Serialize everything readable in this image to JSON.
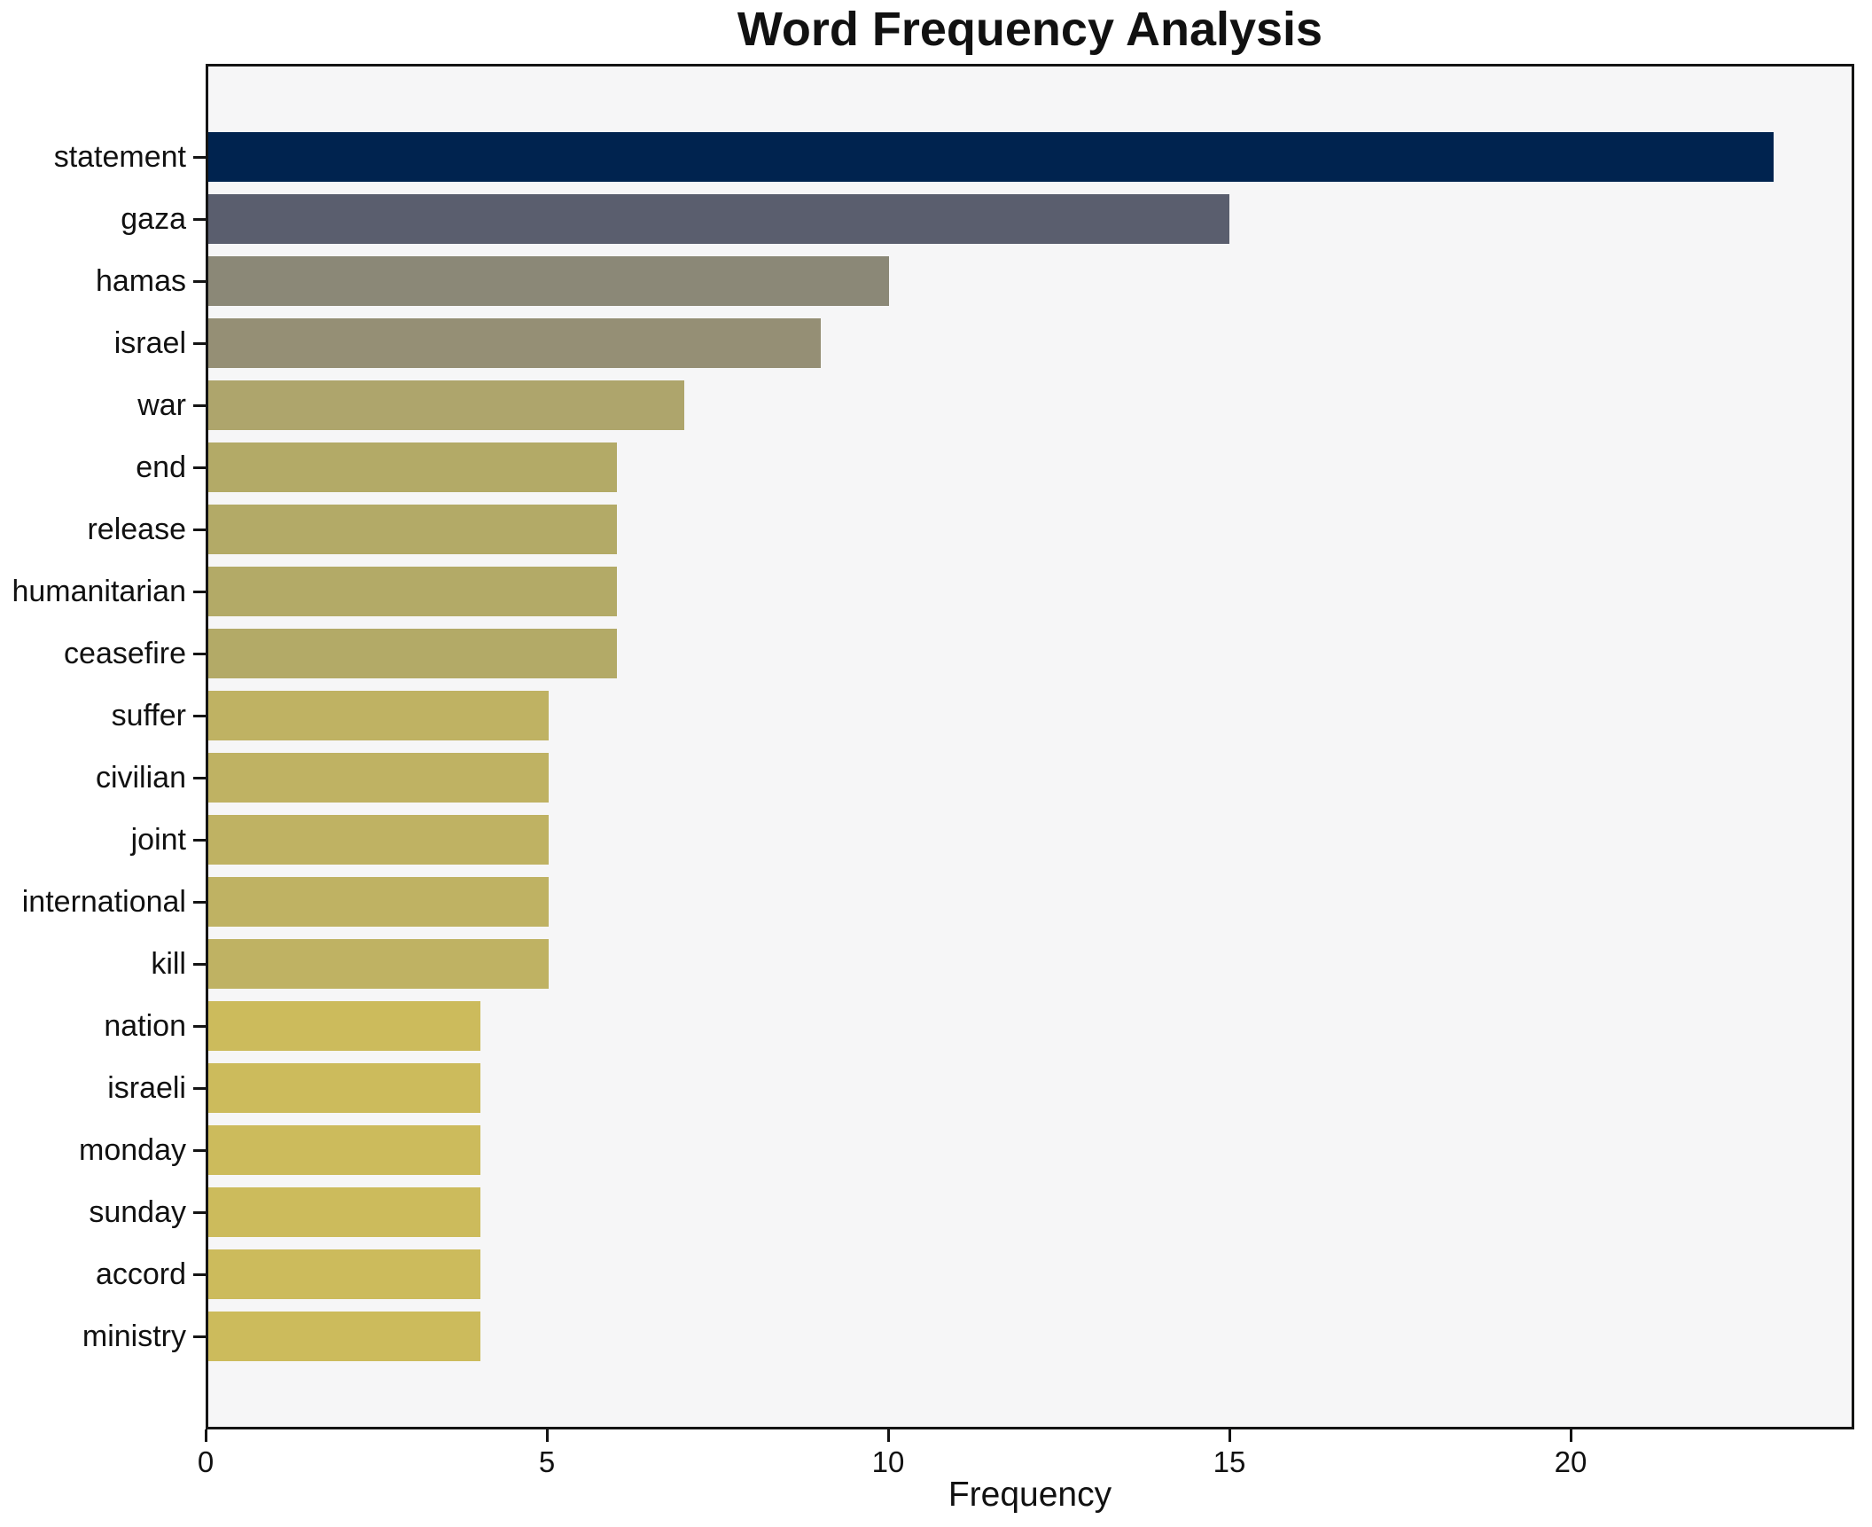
{
  "chart_data": {
    "type": "bar",
    "orientation": "horizontal",
    "title": "Word Frequency Analysis",
    "xlabel": "Frequency",
    "ylabel": "",
    "categories": [
      "statement",
      "gaza",
      "hamas",
      "israel",
      "war",
      "end",
      "release",
      "humanitarian",
      "ceasefire",
      "suffer",
      "civilian",
      "joint",
      "international",
      "kill",
      "nation",
      "israeli",
      "monday",
      "sunday",
      "accord",
      "ministry"
    ],
    "values": [
      23,
      15,
      10,
      9,
      7,
      6,
      6,
      6,
      6,
      5,
      5,
      5,
      5,
      5,
      4,
      4,
      4,
      4,
      4,
      4
    ],
    "bar_colors": [
      "#00234f",
      "#5a5e6e",
      "#8b8877",
      "#958f75",
      "#aea56c",
      "#b3aa67",
      "#b3aa67",
      "#b3aa67",
      "#b3aa67",
      "#bfb263",
      "#bfb263",
      "#bfb263",
      "#bfb263",
      "#bfb263",
      "#ccbb5c",
      "#ccbb5c",
      "#ccbb5c",
      "#ccbb5c",
      "#ccbb5c",
      "#ccbb5c"
    ],
    "colormap": "cividis-by-value",
    "xlim": [
      0,
      24.15
    ],
    "xticks": [
      0,
      5,
      10,
      15,
      20
    ],
    "grid": false,
    "legend": null,
    "plot_bg": "#f6f6f7",
    "fig_bg": "#ffffff",
    "spine_color": "#141414"
  }
}
